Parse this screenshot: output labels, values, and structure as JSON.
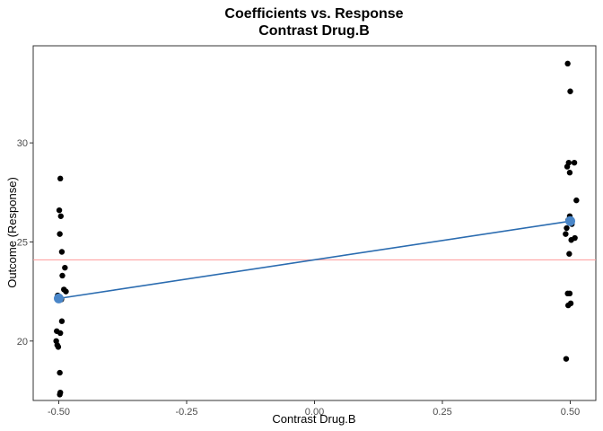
{
  "chart_data": {
    "type": "scatter",
    "title": "Coefficients vs. Response",
    "subtitle": "Contrast Drug.B",
    "xlabel": "Contrast Drug.B",
    "ylabel": "Outcome (Response)",
    "xlim": [
      -0.55,
      0.55
    ],
    "ylim": [
      17.0,
      34.9
    ],
    "x_ticks": [
      -0.5,
      -0.25,
      0.0,
      0.25,
      0.5
    ],
    "x_tick_labels": [
      "-0.50",
      "-0.25",
      "0.00",
      "0.25",
      "0.50"
    ],
    "y_ticks": [
      20,
      25,
      30
    ],
    "y_tick_labels": [
      "20",
      "25",
      "30"
    ],
    "grid": false,
    "reference_line": {
      "y": 24.1,
      "color": "#ff9999"
    },
    "fit_line": {
      "x": [
        -0.5,
        0.5
      ],
      "y": [
        22.15,
        26.05
      ],
      "color": "#2b6cb0"
    },
    "group_means": [
      {
        "x": -0.5,
        "y": 22.15
      },
      {
        "x": 0.5,
        "y": 26.05
      }
    ],
    "mean_color": "#4a86c8",
    "point_color": "#000000",
    "points": [
      {
        "x": -0.497,
        "y": 28.2
      },
      {
        "x": -0.499,
        "y": 26.6
      },
      {
        "x": -0.496,
        "y": 26.3
      },
      {
        "x": -0.498,
        "y": 25.4
      },
      {
        "x": -0.494,
        "y": 24.5
      },
      {
        "x": -0.488,
        "y": 23.7
      },
      {
        "x": -0.493,
        "y": 23.3
      },
      {
        "x": -0.49,
        "y": 22.6
      },
      {
        "x": -0.486,
        "y": 22.5
      },
      {
        "x": -0.502,
        "y": 22.3
      },
      {
        "x": -0.495,
        "y": 22.1
      },
      {
        "x": -0.494,
        "y": 21.0
      },
      {
        "x": -0.504,
        "y": 20.5
      },
      {
        "x": -0.497,
        "y": 20.4
      },
      {
        "x": -0.505,
        "y": 20.0
      },
      {
        "x": -0.503,
        "y": 19.8
      },
      {
        "x": -0.501,
        "y": 19.7
      },
      {
        "x": -0.498,
        "y": 18.4
      },
      {
        "x": -0.497,
        "y": 17.4
      },
      {
        "x": -0.498,
        "y": 17.3
      },
      {
        "x": 0.495,
        "y": 34.0
      },
      {
        "x": 0.5,
        "y": 32.6
      },
      {
        "x": 0.497,
        "y": 29.0
      },
      {
        "x": 0.508,
        "y": 29.0
      },
      {
        "x": 0.494,
        "y": 28.8
      },
      {
        "x": 0.499,
        "y": 28.5
      },
      {
        "x": 0.512,
        "y": 27.1
      },
      {
        "x": 0.499,
        "y": 26.3
      },
      {
        "x": 0.496,
        "y": 26.1
      },
      {
        "x": 0.503,
        "y": 25.9
      },
      {
        "x": 0.493,
        "y": 25.7
      },
      {
        "x": 0.491,
        "y": 25.4
      },
      {
        "x": 0.509,
        "y": 25.2
      },
      {
        "x": 0.502,
        "y": 25.1
      },
      {
        "x": 0.498,
        "y": 24.4
      },
      {
        "x": 0.495,
        "y": 22.4
      },
      {
        "x": 0.499,
        "y": 22.4
      },
      {
        "x": 0.501,
        "y": 21.9
      },
      {
        "x": 0.496,
        "y": 21.8
      },
      {
        "x": 0.492,
        "y": 19.1
      }
    ]
  }
}
